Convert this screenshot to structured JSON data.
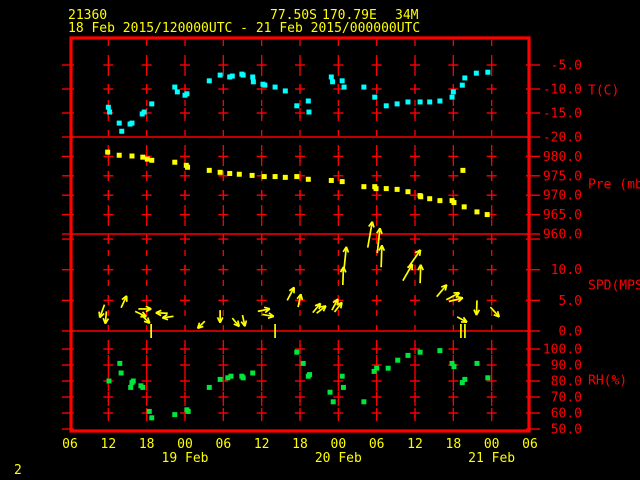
{
  "header": {
    "station_id": "21360",
    "lat": "77.50S",
    "lon": "170.79E",
    "elevation": "34M",
    "time_range": "18 Feb 2015/120000UTC - 21 Feb 2015/000000UTC"
  },
  "footer": {
    "page_number": "2"
  },
  "colors": {
    "background": "#000000",
    "grid": "#ff0000",
    "axis_text": "#ff0000",
    "header_text": "#ffff00",
    "temperature": "#00ffff",
    "pressure": "#ffff00",
    "wind": "#ffff00",
    "humidity": "#00e63c"
  },
  "chart_data": {
    "type": "scatter",
    "subtype": "meteogram-time-series",
    "title": "Station meteogram 21360",
    "hours_reference": "hours since 18 Feb 2015 00UTC",
    "x_axis": {
      "start": "18 Feb 06UTC",
      "end": "21 Feb 06UTC",
      "start_hour": 6,
      "end_hour": 78,
      "tick_interval_hours": 6,
      "hour_tick_labels": [
        "06",
        "12",
        "18",
        "00",
        "06",
        "12",
        "18",
        "00",
        "06",
        "12",
        "18",
        "00",
        "06"
      ],
      "date_labels": [
        {
          "label": "19 Feb",
          "hour": 24
        },
        {
          "label": "20 Feb",
          "hour": 48
        },
        {
          "label": "21 Feb",
          "hour": 72
        }
      ]
    },
    "panels": [
      {
        "key": "temperature",
        "type": "scatter",
        "axis_label": "T(C)",
        "color_key": "temperature",
        "yticks": [
          -5.0,
          -10.0,
          -15.0,
          -20.0
        ],
        "points": [
          [
            12,
            -13.8
          ],
          [
            12.2,
            -14.8
          ],
          [
            13.7,
            -17.1
          ],
          [
            14.1,
            -18.8
          ],
          [
            15.4,
            -17.3
          ],
          [
            15.7,
            -17.1
          ],
          [
            17.3,
            -15.2
          ],
          [
            17.6,
            -14.8
          ],
          [
            18.8,
            -13.1
          ],
          [
            22.4,
            -9.6
          ],
          [
            22.8,
            -10.6
          ],
          [
            24,
            -11.3
          ],
          [
            24.3,
            -11.0
          ],
          [
            27.8,
            -8.3
          ],
          [
            29.5,
            -7.1
          ],
          [
            31,
            -7.5
          ],
          [
            31.4,
            -7.3
          ],
          [
            32.9,
            -6.9
          ],
          [
            33.1,
            -7.1
          ],
          [
            34.6,
            -7.5
          ],
          [
            34.7,
            -8.5
          ],
          [
            36.2,
            -9.0
          ],
          [
            36.5,
            -9.2
          ],
          [
            38.1,
            -9.6
          ],
          [
            39.7,
            -10.4
          ],
          [
            41.5,
            -13.5
          ],
          [
            43.3,
            -12.5
          ],
          [
            43.4,
            -14.8
          ],
          [
            46.9,
            -7.5
          ],
          [
            47.1,
            -8.5
          ],
          [
            48.6,
            -8.3
          ],
          [
            48.9,
            -9.6
          ],
          [
            52,
            -9.6
          ],
          [
            53.7,
            -11.7
          ],
          [
            55.5,
            -13.5
          ],
          [
            57.2,
            -13.1
          ],
          [
            58.9,
            -12.7
          ],
          [
            60.8,
            -12.7
          ],
          [
            62.3,
            -12.7
          ],
          [
            63.9,
            -12.5
          ],
          [
            65.8,
            -11.7
          ],
          [
            66,
            -10.6
          ],
          [
            67.4,
            -9.2
          ],
          [
            67.8,
            -7.7
          ],
          [
            69.6,
            -6.7
          ],
          [
            71.4,
            -6.5
          ]
        ]
      },
      {
        "key": "pressure",
        "type": "scatter",
        "axis_label": "Pre (mb)",
        "color_key": "pressure",
        "yticks": [
          980.0,
          975.0,
          970.0,
          965.0,
          960.0
        ],
        "points": [
          [
            11.9,
            981.1
          ],
          [
            13.7,
            980.3
          ],
          [
            15.7,
            980.1
          ],
          [
            17.4,
            979.8
          ],
          [
            18.1,
            979.3
          ],
          [
            18.8,
            979.0
          ],
          [
            22.4,
            978.5
          ],
          [
            24.2,
            977.7
          ],
          [
            24.4,
            977.2
          ],
          [
            27.8,
            976.4
          ],
          [
            29.5,
            975.9
          ],
          [
            31,
            975.6
          ],
          [
            32.5,
            975.4
          ],
          [
            34.5,
            975.1
          ],
          [
            36.4,
            974.8
          ],
          [
            38.1,
            974.8
          ],
          [
            39.7,
            974.6
          ],
          [
            41.5,
            974.8
          ],
          [
            43.3,
            974.1
          ],
          [
            46.9,
            973.8
          ],
          [
            48.6,
            973.5
          ],
          [
            52,
            972.2
          ],
          [
            53.7,
            972.2
          ],
          [
            53.9,
            971.7
          ],
          [
            55.5,
            971.7
          ],
          [
            57.2,
            971.5
          ],
          [
            58.9,
            970.9
          ],
          [
            60.8,
            969.9
          ],
          [
            60.9,
            969.6
          ],
          [
            62.3,
            969.1
          ],
          [
            63.9,
            968.6
          ],
          [
            65.8,
            968.6
          ],
          [
            66.1,
            968.1
          ],
          [
            67.5,
            976.4
          ],
          [
            67.7,
            967.0
          ],
          [
            69.7,
            965.7
          ],
          [
            71.3,
            965.0
          ]
        ]
      },
      {
        "key": "wind",
        "type": "wind-vectors",
        "axis_label": "SPD(MPS)",
        "color_key": "wind",
        "yticks": [
          10.0,
          5.0,
          0.0
        ],
        "extra_grid_levels": [
          15.0
        ],
        "dir_note": "degrees clockwise from up (direction arrow points)",
        "points": [
          {
            "h": 11.4,
            "spd": 4.3,
            "dir": 200
          },
          {
            "h": 11.7,
            "spd": 3.2,
            "dir": 185
          },
          {
            "h": 14,
            "spd": 3.8,
            "dir": 25
          },
          {
            "h": 16.2,
            "spd": 3.2,
            "dir": 115
          },
          {
            "h": 16.7,
            "spd": 3.6,
            "dir": 90
          },
          {
            "h": 17.2,
            "spd": 2.6,
            "dir": 135
          },
          {
            "h": 21.3,
            "spd": 2.9,
            "dir": 272
          },
          {
            "h": 22.2,
            "spd": 2.4,
            "dir": 262
          },
          {
            "h": 27.1,
            "spd": 1.6,
            "dir": 225
          },
          {
            "h": 29.5,
            "spd": 3.4,
            "dir": 180
          },
          {
            "h": 31.4,
            "spd": 2.1,
            "dir": 140
          },
          {
            "h": 33,
            "spd": 2.6,
            "dir": 168
          },
          {
            "h": 35.4,
            "spd": 3.2,
            "dir": 78
          },
          {
            "h": 36.1,
            "spd": 2.7,
            "dir": 100
          },
          {
            "h": 40,
            "spd": 5.0,
            "dir": 28
          },
          {
            "h": 41.7,
            "spd": 3.9,
            "dir": 12
          },
          {
            "h": 44,
            "spd": 3.0,
            "dir": 40
          },
          {
            "h": 44.6,
            "spd": 2.9,
            "dir": 52
          },
          {
            "h": 47,
            "spd": 3.4,
            "dir": 28
          },
          {
            "h": 47.4,
            "spd": 3.1,
            "dir": 38
          },
          {
            "h": 48.7,
            "spd": 7.5,
            "dir": 2
          },
          {
            "h": 48.9,
            "spd": 10.2,
            "dir": 6
          },
          {
            "h": 52.6,
            "spd": 13.6,
            "dir": 10
          },
          {
            "h": 54.1,
            "spd": 12.7,
            "dir": 6
          },
          {
            "h": 54.7,
            "spd": 10.4,
            "dir": 2
          },
          {
            "h": 58.1,
            "spd": 8.2,
            "dir": 30
          },
          {
            "h": 58.9,
            "spd": 10.3,
            "dir": 35
          },
          {
            "h": 60.8,
            "spd": 7.8,
            "dir": 2
          },
          {
            "h": 63.4,
            "spd": 5.6,
            "dir": 40
          },
          {
            "h": 64.9,
            "spd": 5.1,
            "dir": 62
          },
          {
            "h": 65.3,
            "spd": 4.8,
            "dir": 75
          },
          {
            "h": 66.6,
            "spd": 2.3,
            "dir": 118
          },
          {
            "h": 69.7,
            "spd": 5.0,
            "dir": 182
          },
          {
            "h": 71.8,
            "spd": 3.9,
            "dir": 138
          }
        ],
        "calm_markers": [
          {
            "h": 18.7,
            "bars": 1
          },
          {
            "h": 38.1,
            "bars": 1
          },
          {
            "h": 67.5,
            "bars": 2
          }
        ]
      },
      {
        "key": "humidity",
        "type": "scatter",
        "axis_label": "RH(%)",
        "color_key": "humidity",
        "yticks": [
          100.0,
          90.0,
          80.0,
          70.0,
          60.0,
          50.0
        ],
        "points": [
          [
            12.1,
            80
          ],
          [
            13.8,
            91
          ],
          [
            14,
            85
          ],
          [
            15.5,
            76
          ],
          [
            15.7,
            79
          ],
          [
            15.9,
            80
          ],
          [
            17.1,
            77
          ],
          [
            17.4,
            76
          ],
          [
            18.4,
            61
          ],
          [
            18.8,
            57
          ],
          [
            22.4,
            59
          ],
          [
            24.3,
            62
          ],
          [
            24.5,
            61
          ],
          [
            27.8,
            76
          ],
          [
            29.5,
            81
          ],
          [
            30.7,
            82
          ],
          [
            31.2,
            83
          ],
          [
            32.9,
            83
          ],
          [
            33.1,
            82
          ],
          [
            34.6,
            85
          ],
          [
            41.5,
            98
          ],
          [
            42.5,
            91
          ],
          [
            43.3,
            83
          ],
          [
            43.5,
            84
          ],
          [
            46.7,
            73
          ],
          [
            47.2,
            67
          ],
          [
            48.6,
            83
          ],
          [
            48.8,
            76
          ],
          [
            52,
            67
          ],
          [
            53.6,
            86
          ],
          [
            54,
            88
          ],
          [
            55.8,
            88
          ],
          [
            57.3,
            93
          ],
          [
            58.9,
            96
          ],
          [
            60.8,
            98
          ],
          [
            63.9,
            99
          ],
          [
            65.8,
            91
          ],
          [
            66.1,
            89
          ],
          [
            67.4,
            79
          ],
          [
            67.8,
            81
          ],
          [
            69.7,
            91
          ],
          [
            71.4,
            82
          ]
        ]
      }
    ]
  }
}
